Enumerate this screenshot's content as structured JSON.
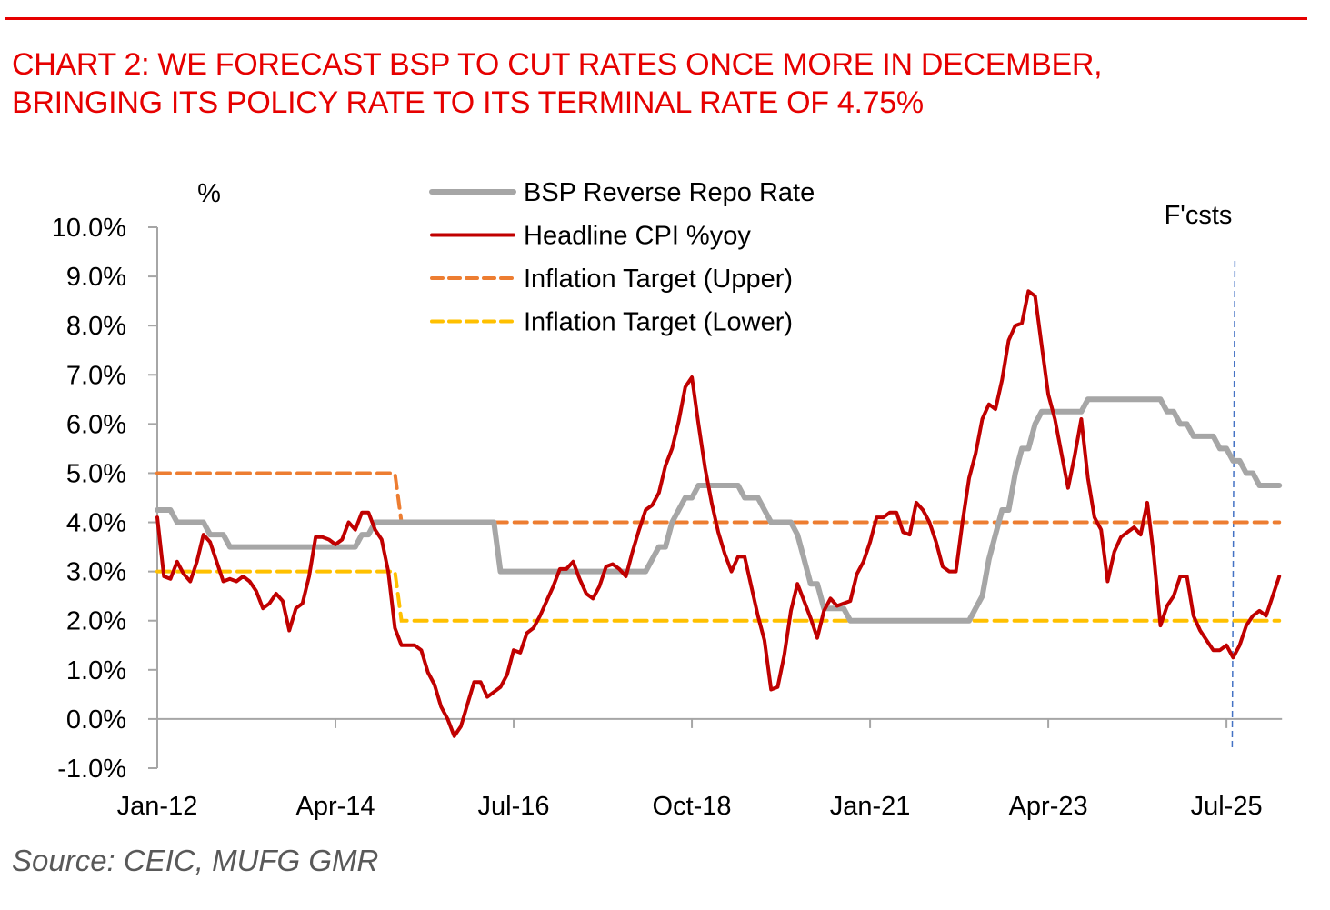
{
  "header": {
    "title_line1": "CHART 2: WE FORECAST BSP TO CUT RATES ONCE MORE IN DECEMBER,",
    "title_line2": "BRINGING ITS POLICY RATE TO ITS TERMINAL RATE OF 4.75%"
  },
  "footer": {
    "source": "Source: CEIC, MUFG GMR"
  },
  "colors": {
    "accent": "#e60000",
    "policy_rate": "#a6a6a6",
    "cpi": "#c00000",
    "target_upper": "#ed7d31",
    "target_lower": "#ffc000",
    "forecast_marker": "#4472c4",
    "axis": "#a6a6a6"
  },
  "chart_data": {
    "type": "line",
    "title": "CHART 2: WE FORECAST BSP TO CUT RATES ONCE MORE IN DECEMBER, BRINGING ITS POLICY RATE TO ITS TERMINAL RATE OF 4.75%",
    "ylabel": "%",
    "xlabel": "",
    "ylim": [
      -1.0,
      10.0
    ],
    "yticks": [
      -1.0,
      0.0,
      1.0,
      2.0,
      3.0,
      4.0,
      5.0,
      6.0,
      7.0,
      8.0,
      9.0,
      10.0
    ],
    "ytick_labels": [
      "-1.0%",
      "0.0%",
      "1.0%",
      "2.0%",
      "3.0%",
      "4.0%",
      "5.0%",
      "6.0%",
      "7.0%",
      "8.0%",
      "9.0%",
      "10.0%"
    ],
    "x_start": "Jan-12",
    "x_frequency": "monthly",
    "xlim_months": [
      0,
      170
    ],
    "xticks": [
      {
        "label": "Jan-12",
        "month": 0
      },
      {
        "label": "Apr-14",
        "month": 27
      },
      {
        "label": "Jul-16",
        "month": 54
      },
      {
        "label": "Oct-18",
        "month": 81
      },
      {
        "label": "Jan-21",
        "month": 108
      },
      {
        "label": "Apr-23",
        "month": 135
      },
      {
        "label": "Jul-25",
        "month": 162
      }
    ],
    "grid": false,
    "legend_position": "top-center",
    "annotations": [
      {
        "text": "F'csts",
        "month": 163,
        "type": "vertical-dashed-line"
      }
    ],
    "series": [
      {
        "name": "BSP Reverse Repo Rate",
        "style": "solid-thick",
        "color": "#a6a6a6",
        "points": [
          [
            0,
            4.25
          ],
          [
            2,
            4.25
          ],
          [
            3,
            4.0
          ],
          [
            7,
            4.0
          ],
          [
            8,
            3.75
          ],
          [
            10,
            3.75
          ],
          [
            11,
            3.5
          ],
          [
            30,
            3.5
          ],
          [
            31,
            3.75
          ],
          [
            32,
            3.75
          ],
          [
            33,
            4.0
          ],
          [
            51,
            4.0
          ],
          [
            52,
            3.0
          ],
          [
            74,
            3.0
          ],
          [
            75,
            3.25
          ],
          [
            76,
            3.5
          ],
          [
            77,
            3.5
          ],
          [
            78,
            4.0
          ],
          [
            79,
            4.25
          ],
          [
            80,
            4.5
          ],
          [
            81,
            4.5
          ],
          [
            82,
            4.75
          ],
          [
            88,
            4.75
          ],
          [
            89,
            4.5
          ],
          [
            91,
            4.5
          ],
          [
            93,
            4.0
          ],
          [
            96,
            4.0
          ],
          [
            97,
            3.75
          ],
          [
            98,
            3.25
          ],
          [
            99,
            2.75
          ],
          [
            100,
            2.75
          ],
          [
            101,
            2.25
          ],
          [
            104,
            2.25
          ],
          [
            105,
            2.0
          ],
          [
            123,
            2.0
          ],
          [
            124,
            2.25
          ],
          [
            125,
            2.5
          ],
          [
            126,
            3.25
          ],
          [
            127,
            3.75
          ],
          [
            128,
            4.25
          ],
          [
            129,
            4.25
          ],
          [
            130,
            5.0
          ],
          [
            131,
            5.5
          ],
          [
            132,
            5.5
          ],
          [
            133,
            6.0
          ],
          [
            134,
            6.25
          ],
          [
            140,
            6.25
          ],
          [
            141,
            6.5
          ],
          [
            152,
            6.5
          ],
          [
            153,
            6.25
          ],
          [
            154,
            6.25
          ],
          [
            155,
            6.0
          ],
          [
            156,
            6.0
          ],
          [
            157,
            5.75
          ],
          [
            160,
            5.75
          ],
          [
            161,
            5.5
          ],
          [
            162,
            5.5
          ],
          [
            163,
            5.25
          ],
          [
            164,
            5.25
          ],
          [
            165,
            5.0
          ],
          [
            166,
            5.0
          ],
          [
            167,
            4.75
          ],
          [
            170,
            4.75
          ]
        ]
      },
      {
        "name": "Headline CPI %yoy",
        "style": "solid",
        "color": "#c00000",
        "values": [
          4.1,
          2.9,
          2.85,
          3.2,
          2.95,
          2.8,
          3.2,
          3.75,
          3.6,
          3.2,
          2.8,
          2.85,
          2.8,
          2.9,
          2.8,
          2.6,
          2.25,
          2.35,
          2.55,
          2.4,
          1.8,
          2.25,
          2.35,
          2.9,
          3.7,
          3.7,
          3.65,
          3.55,
          3.65,
          4.0,
          3.85,
          4.2,
          4.2,
          3.85,
          3.65,
          3.0,
          1.85,
          1.5,
          1.5,
          1.5,
          1.4,
          0.95,
          0.7,
          0.25,
          0.0,
          -0.35,
          -0.15,
          0.3,
          0.75,
          0.75,
          0.45,
          0.55,
          0.65,
          0.9,
          1.4,
          1.35,
          1.75,
          1.85,
          2.1,
          2.4,
          2.7,
          3.05,
          3.05,
          3.2,
          2.85,
          2.55,
          2.45,
          2.7,
          3.1,
          3.15,
          3.05,
          2.9,
          3.4,
          3.85,
          4.25,
          4.35,
          4.6,
          5.15,
          5.5,
          6.05,
          6.75,
          6.95,
          6.0,
          5.1,
          4.4,
          3.8,
          3.35,
          3.0,
          3.3,
          3.3,
          2.7,
          2.1,
          1.6,
          0.6,
          0.65,
          1.3,
          2.2,
          2.75,
          2.4,
          2.05,
          1.65,
          2.2,
          2.45,
          2.3,
          2.35,
          2.4,
          2.95,
          3.2,
          3.6,
          4.1,
          4.1,
          4.2,
          4.2,
          3.8,
          3.75,
          4.4,
          4.25,
          4.0,
          3.6,
          3.1,
          3.0,
          3.0,
          4.0,
          4.9,
          5.4,
          6.1,
          6.4,
          6.3,
          6.9,
          7.7,
          8.0,
          8.05,
          8.7,
          8.6,
          7.6,
          6.6,
          6.1,
          5.4,
          4.7,
          5.35,
          6.1,
          4.9,
          4.1,
          3.85,
          2.8,
          3.4,
          3.7,
          3.8,
          3.9,
          3.75,
          4.4,
          3.3,
          1.9,
          2.3,
          2.5,
          2.9,
          2.9,
          2.1,
          1.8,
          1.6,
          1.4,
          1.4,
          1.5,
          1.25,
          1.5,
          1.9,
          2.1,
          2.2,
          2.1,
          2.5,
          2.9
        ]
      },
      {
        "name": "Inflation Target (Upper)",
        "style": "dashed",
        "color": "#ed7d31",
        "points": [
          [
            0,
            5.0
          ],
          [
            36,
            5.0
          ],
          [
            37,
            4.0
          ],
          [
            170,
            4.0
          ]
        ]
      },
      {
        "name": "Inflation Target (Lower)",
        "style": "dashed",
        "color": "#ffc000",
        "points": [
          [
            0,
            3.0
          ],
          [
            36,
            3.0
          ],
          [
            37,
            2.0
          ],
          [
            170,
            2.0
          ]
        ]
      }
    ],
    "legend": [
      {
        "label": "BSP Reverse Repo Rate"
      },
      {
        "label": "Headline CPI %yoy"
      },
      {
        "label": "Inflation Target (Upper)"
      },
      {
        "label": "Inflation Target (Lower)"
      }
    ],
    "forecast_label": "F'csts"
  }
}
